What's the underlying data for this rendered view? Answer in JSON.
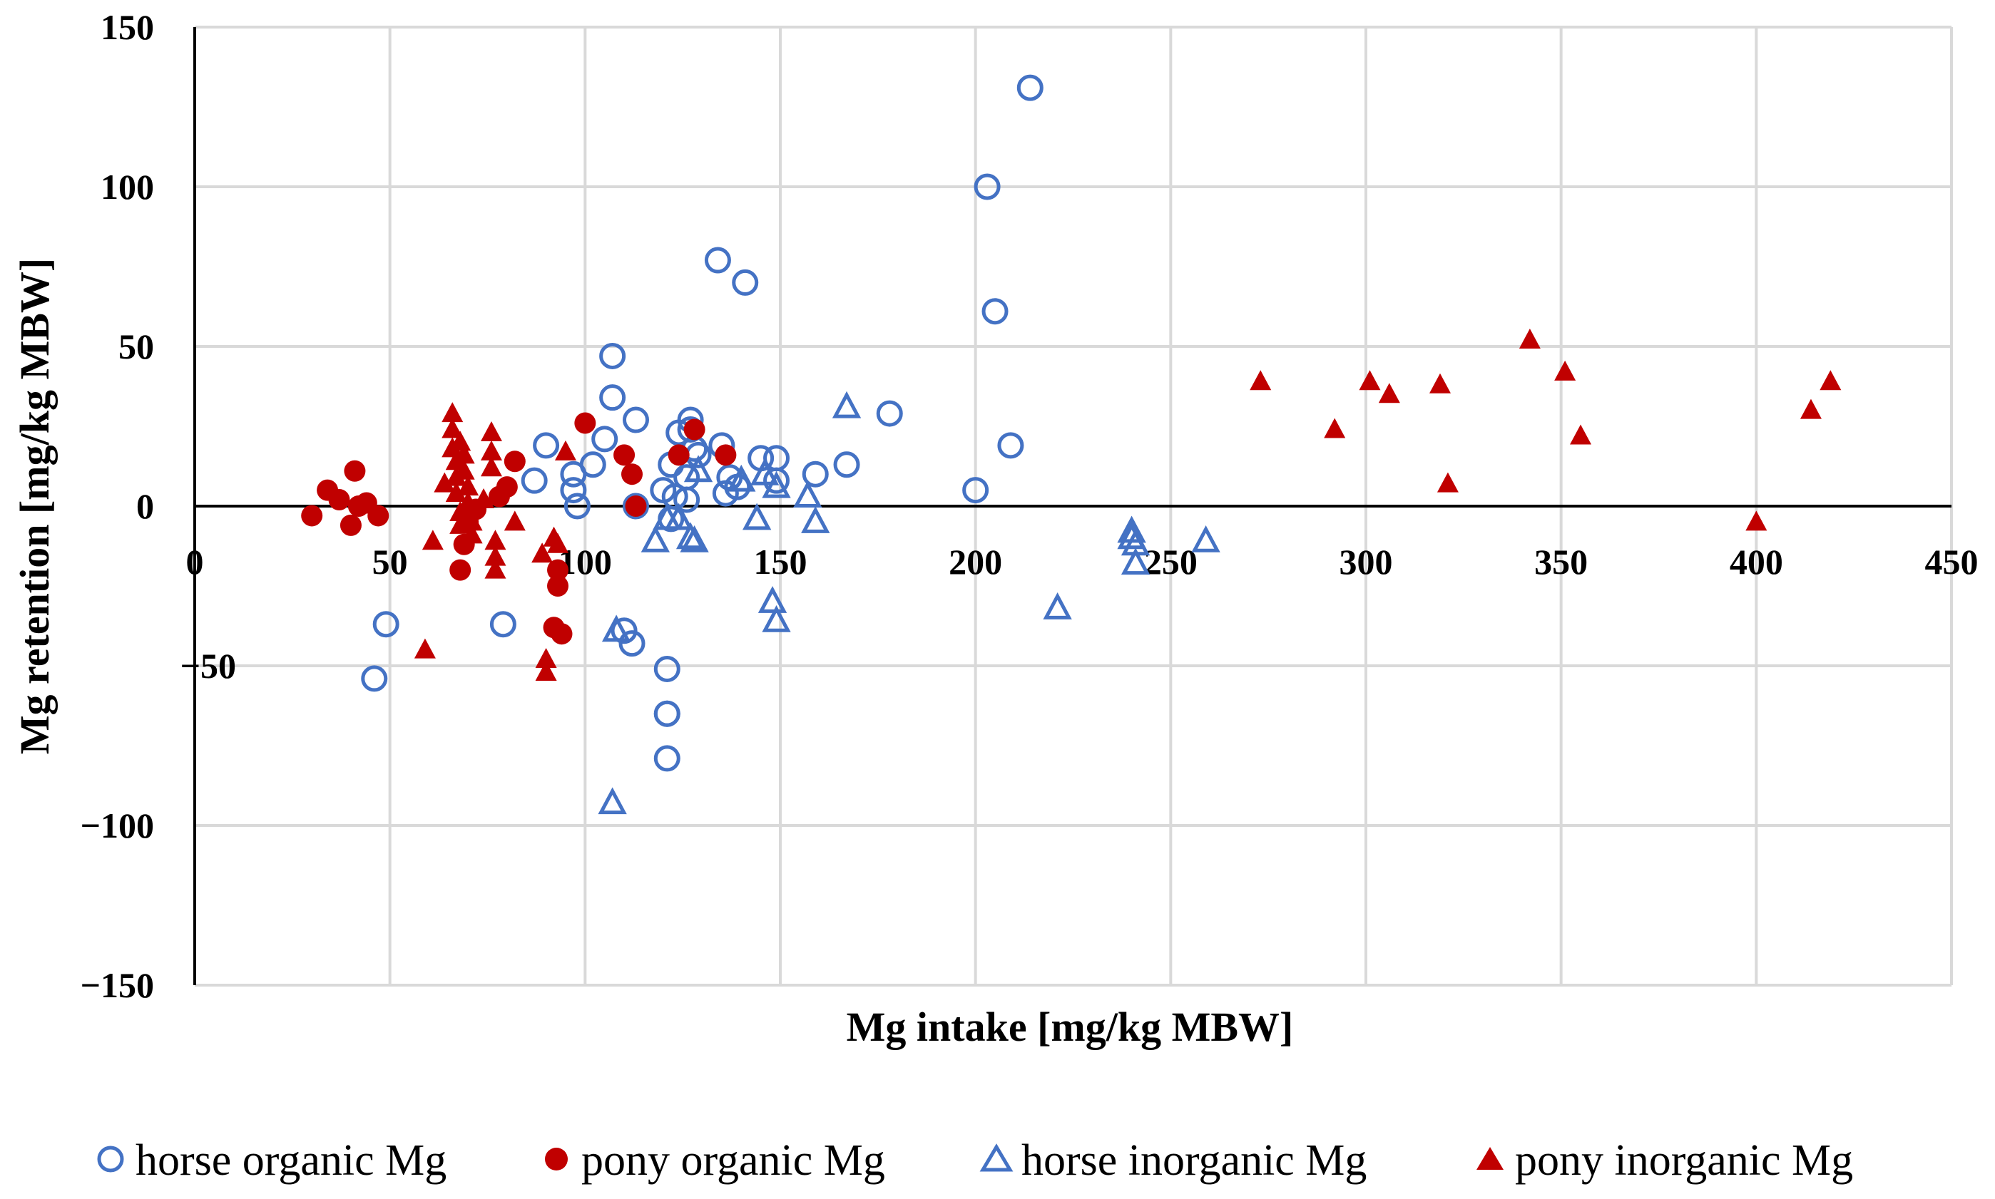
{
  "chart_data": {
    "type": "scatter",
    "title": "",
    "xlabel": "Mg intake [mg/kg MBW]",
    "ylabel": "Mg retention [mg/kg MBW]",
    "xlim": [
      0,
      450
    ],
    "ylim": [
      -150,
      150
    ],
    "x_ticks": [
      "0",
      "50",
      "100",
      "150",
      "200",
      "250",
      "300",
      "350",
      "400",
      "450"
    ],
    "y_ticks": [
      "150",
      "100",
      "50",
      "0",
      "−100",
      "−150"
    ],
    "y_tick_minus50": "−50",
    "grid": true,
    "legend_position": "bottom",
    "series": [
      {
        "name": "horse organic Mg",
        "marker": "open-circle",
        "color": "#4472C4",
        "points": [
          [
            46,
            -54
          ],
          [
            49,
            -37
          ],
          [
            79,
            -37
          ],
          [
            87,
            8
          ],
          [
            90,
            19
          ],
          [
            97,
            10
          ],
          [
            97,
            5
          ],
          [
            98,
            0
          ],
          [
            102,
            13
          ],
          [
            105,
            21
          ],
          [
            107,
            47
          ],
          [
            107,
            34
          ],
          [
            110,
            -39
          ],
          [
            112,
            -43
          ],
          [
            113,
            27
          ],
          [
            113,
            0
          ],
          [
            120,
            5
          ],
          [
            121,
            -51
          ],
          [
            121,
            -65
          ],
          [
            121,
            -65
          ],
          [
            121,
            -79
          ],
          [
            122,
            -4
          ],
          [
            122,
            13
          ],
          [
            123,
            3
          ],
          [
            124,
            23
          ],
          [
            126,
            9
          ],
          [
            126,
            2
          ],
          [
            127,
            27
          ],
          [
            127,
            24
          ],
          [
            128,
            18
          ],
          [
            129,
            16
          ],
          [
            134,
            77
          ],
          [
            135,
            19
          ],
          [
            136,
            4
          ],
          [
            137,
            9
          ],
          [
            139,
            6
          ],
          [
            141,
            70
          ],
          [
            145,
            15
          ],
          [
            149,
            15
          ],
          [
            149,
            8
          ],
          [
            159,
            10
          ],
          [
            167,
            13
          ],
          [
            178,
            29
          ],
          [
            200,
            5
          ],
          [
            203,
            100
          ],
          [
            205,
            61
          ],
          [
            209,
            19
          ],
          [
            214,
            131
          ]
        ]
      },
      {
        "name": "pony organic Mg",
        "marker": "filled-circle",
        "color": "#C00000",
        "points": [
          [
            30,
            -3
          ],
          [
            34,
            5
          ],
          [
            37,
            2
          ],
          [
            40,
            -6
          ],
          [
            41,
            11
          ],
          [
            42,
            0
          ],
          [
            44,
            1
          ],
          [
            47,
            -3
          ],
          [
            68,
            -20
          ],
          [
            69,
            -12
          ],
          [
            70,
            -5
          ],
          [
            72,
            -1
          ],
          [
            78,
            3
          ],
          [
            80,
            6
          ],
          [
            82,
            14
          ],
          [
            92,
            -38
          ],
          [
            93,
            -25
          ],
          [
            93,
            -20
          ],
          [
            94,
            -40
          ],
          [
            100,
            26
          ],
          [
            110,
            16
          ],
          [
            112,
            10
          ],
          [
            113,
            0
          ],
          [
            124,
            16
          ],
          [
            128,
            24
          ],
          [
            136,
            16
          ]
        ]
      },
      {
        "name": "horse inorganic Mg",
        "marker": "open-triangle",
        "color": "#4472C4",
        "points": [
          [
            107,
            -93
          ],
          [
            108,
            -39
          ],
          [
            118,
            -11
          ],
          [
            121,
            -4
          ],
          [
            124,
            -4
          ],
          [
            127,
            -10
          ],
          [
            128,
            -11
          ],
          [
            129,
            11
          ],
          [
            140,
            8
          ],
          [
            144,
            -4
          ],
          [
            146,
            10
          ],
          [
            148,
            -30
          ],
          [
            149,
            -36
          ],
          [
            149,
            6
          ],
          [
            157,
            3
          ],
          [
            159,
            -5
          ],
          [
            167,
            31
          ],
          [
            221,
            -32
          ],
          [
            240,
            -8
          ],
          [
            240,
            -10
          ],
          [
            241,
            -12
          ],
          [
            241,
            -18
          ],
          [
            259,
            -11
          ]
        ]
      },
      {
        "name": "pony inorganic Mg",
        "marker": "filled-triangle",
        "color": "#C00000",
        "points": [
          [
            59,
            -45
          ],
          [
            61,
            -11
          ],
          [
            64,
            7
          ],
          [
            66,
            29
          ],
          [
            66,
            24
          ],
          [
            66,
            18
          ],
          [
            67,
            14
          ],
          [
            67,
            9
          ],
          [
            67,
            4
          ],
          [
            68,
            -2
          ],
          [
            68,
            -6
          ],
          [
            68,
            20
          ],
          [
            69,
            16
          ],
          [
            69,
            11
          ],
          [
            70,
            6
          ],
          [
            70,
            1
          ],
          [
            71,
            -5
          ],
          [
            71,
            -9
          ],
          [
            74,
            2
          ],
          [
            76,
            23
          ],
          [
            76,
            12
          ],
          [
            76,
            17
          ],
          [
            77,
            -11
          ],
          [
            77,
            -16
          ],
          [
            77,
            -20
          ],
          [
            82,
            -5
          ],
          [
            89,
            -15
          ],
          [
            90,
            -48
          ],
          [
            90,
            -52
          ],
          [
            92,
            -10
          ],
          [
            93,
            -12
          ],
          [
            95,
            17
          ],
          [
            273,
            39
          ],
          [
            292,
            24
          ],
          [
            301,
            39
          ],
          [
            306,
            35
          ],
          [
            319,
            38
          ],
          [
            321,
            7
          ],
          [
            342,
            52
          ],
          [
            351,
            42
          ],
          [
            355,
            22
          ],
          [
            400,
            -5
          ],
          [
            414,
            30
          ],
          [
            419,
            39
          ]
        ]
      }
    ]
  }
}
